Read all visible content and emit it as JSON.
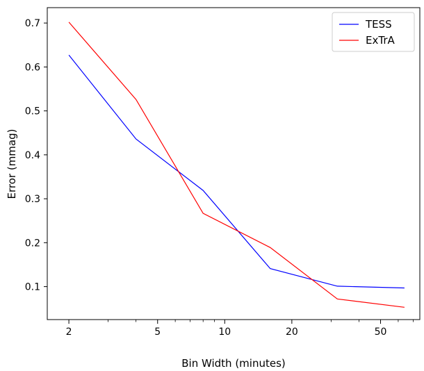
{
  "chart_data": {
    "type": "line",
    "title": "",
    "xlabel": "Bin Width (minutes)",
    "ylabel": "Error (mmag)",
    "xscale": "log",
    "xlim": [
      1.6,
      75
    ],
    "ylim": [
      0.025,
      0.735
    ],
    "xticks_major": [
      2,
      5,
      10,
      20,
      50
    ],
    "xticks_minor": [
      3,
      4,
      6,
      7,
      8,
      9,
      30,
      40,
      60,
      70
    ],
    "yticks": [
      0.1,
      0.2,
      0.3,
      0.4,
      0.5,
      0.6,
      0.7
    ],
    "grid": false,
    "legend_position": "top-right",
    "x": [
      2,
      4,
      8,
      16,
      32,
      64
    ],
    "series": [
      {
        "name": "TESS",
        "color": "#0000ff",
        "values": [
          0.627,
          0.436,
          0.319,
          0.141,
          0.101,
          0.097
        ]
      },
      {
        "name": "ExTrA",
        "color": "#ff0000",
        "values": [
          0.702,
          0.526,
          0.267,
          0.189,
          0.072,
          0.053
        ]
      }
    ]
  }
}
